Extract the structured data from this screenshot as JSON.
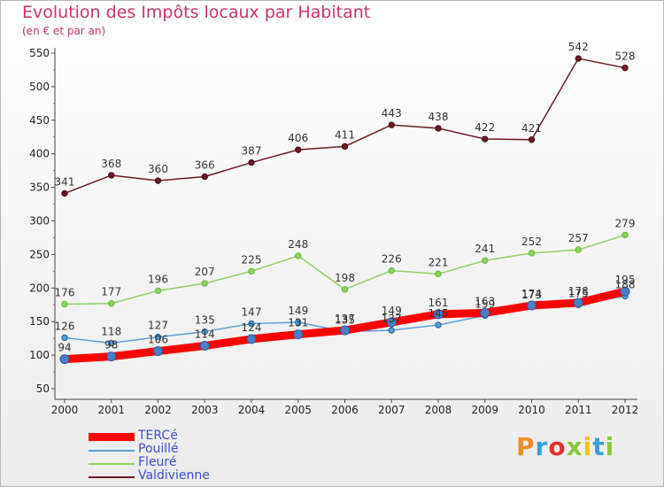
{
  "title": "Evolution des Impôts locaux par Habitant",
  "subtitle": "(en € et par an)",
  "logo": "Proxiti",
  "logo_colors": [
    "#f28c28",
    "#3aa0d8",
    "#e03030",
    "#8cc63f",
    "#f4c20d",
    "#3aa0d8",
    "#8cc63f"
  ],
  "chart_data": {
    "type": "line",
    "x": [
      "2000",
      "2001",
      "2002",
      "2003",
      "2004",
      "2005",
      "2006",
      "2007",
      "2008",
      "2009",
      "2010",
      "2011",
      "2012"
    ],
    "ylim": [
      50,
      550
    ],
    "yticks": [
      "50",
      "100",
      "150",
      "200",
      "250",
      "300",
      "350",
      "400",
      "450",
      "500",
      "550"
    ],
    "grid": false,
    "legend_position": "bottom-left",
    "series": [
      {
        "name": "Valdivienne",
        "color": "#6b1a24",
        "values": [
          341,
          368,
          360,
          366,
          387,
          406,
          411,
          443,
          438,
          422,
          421,
          542,
          528
        ],
        "labels": [
          "341",
          "368",
          "360",
          "366",
          "387",
          "406",
          "411",
          "443",
          "438",
          "422",
          "421",
          "542",
          "528"
        ]
      },
      {
        "name": "Fleuré",
        "color": "#8fd064",
        "values": [
          176,
          177,
          196,
          207,
          225,
          248,
          198,
          226,
          221,
          241,
          252,
          257,
          279
        ],
        "labels": [
          "176",
          "177",
          "196",
          "207",
          "225",
          "248",
          "198",
          "226",
          "221",
          "241",
          "252",
          "257",
          "279"
        ]
      },
      {
        "name": "Pouillé",
        "color": "#5b9fd8",
        "values": [
          126,
          118,
          127,
          135,
          147,
          149,
          135,
          137,
          145,
          159,
          173,
          175,
          188
        ],
        "labels": [
          "126",
          "118",
          "127",
          "135",
          "147",
          "149",
          "135",
          "137",
          "145",
          "159",
          "173",
          "175",
          "188"
        ]
      },
      {
        "name": "TERCé",
        "color": "#ff0000",
        "values": [
          94,
          98,
          106,
          114,
          124,
          131,
          137,
          149,
          161,
          163,
          174,
          178,
          195
        ],
        "labels": [
          "94",
          "98",
          "106",
          "114",
          "124",
          "131",
          "137",
          "149",
          "161",
          "163",
          "174",
          "178",
          "195"
        ]
      }
    ],
    "legend": [
      "TERCé",
      "Pouillé",
      "Fleuré",
      "Valdivienne"
    ]
  }
}
